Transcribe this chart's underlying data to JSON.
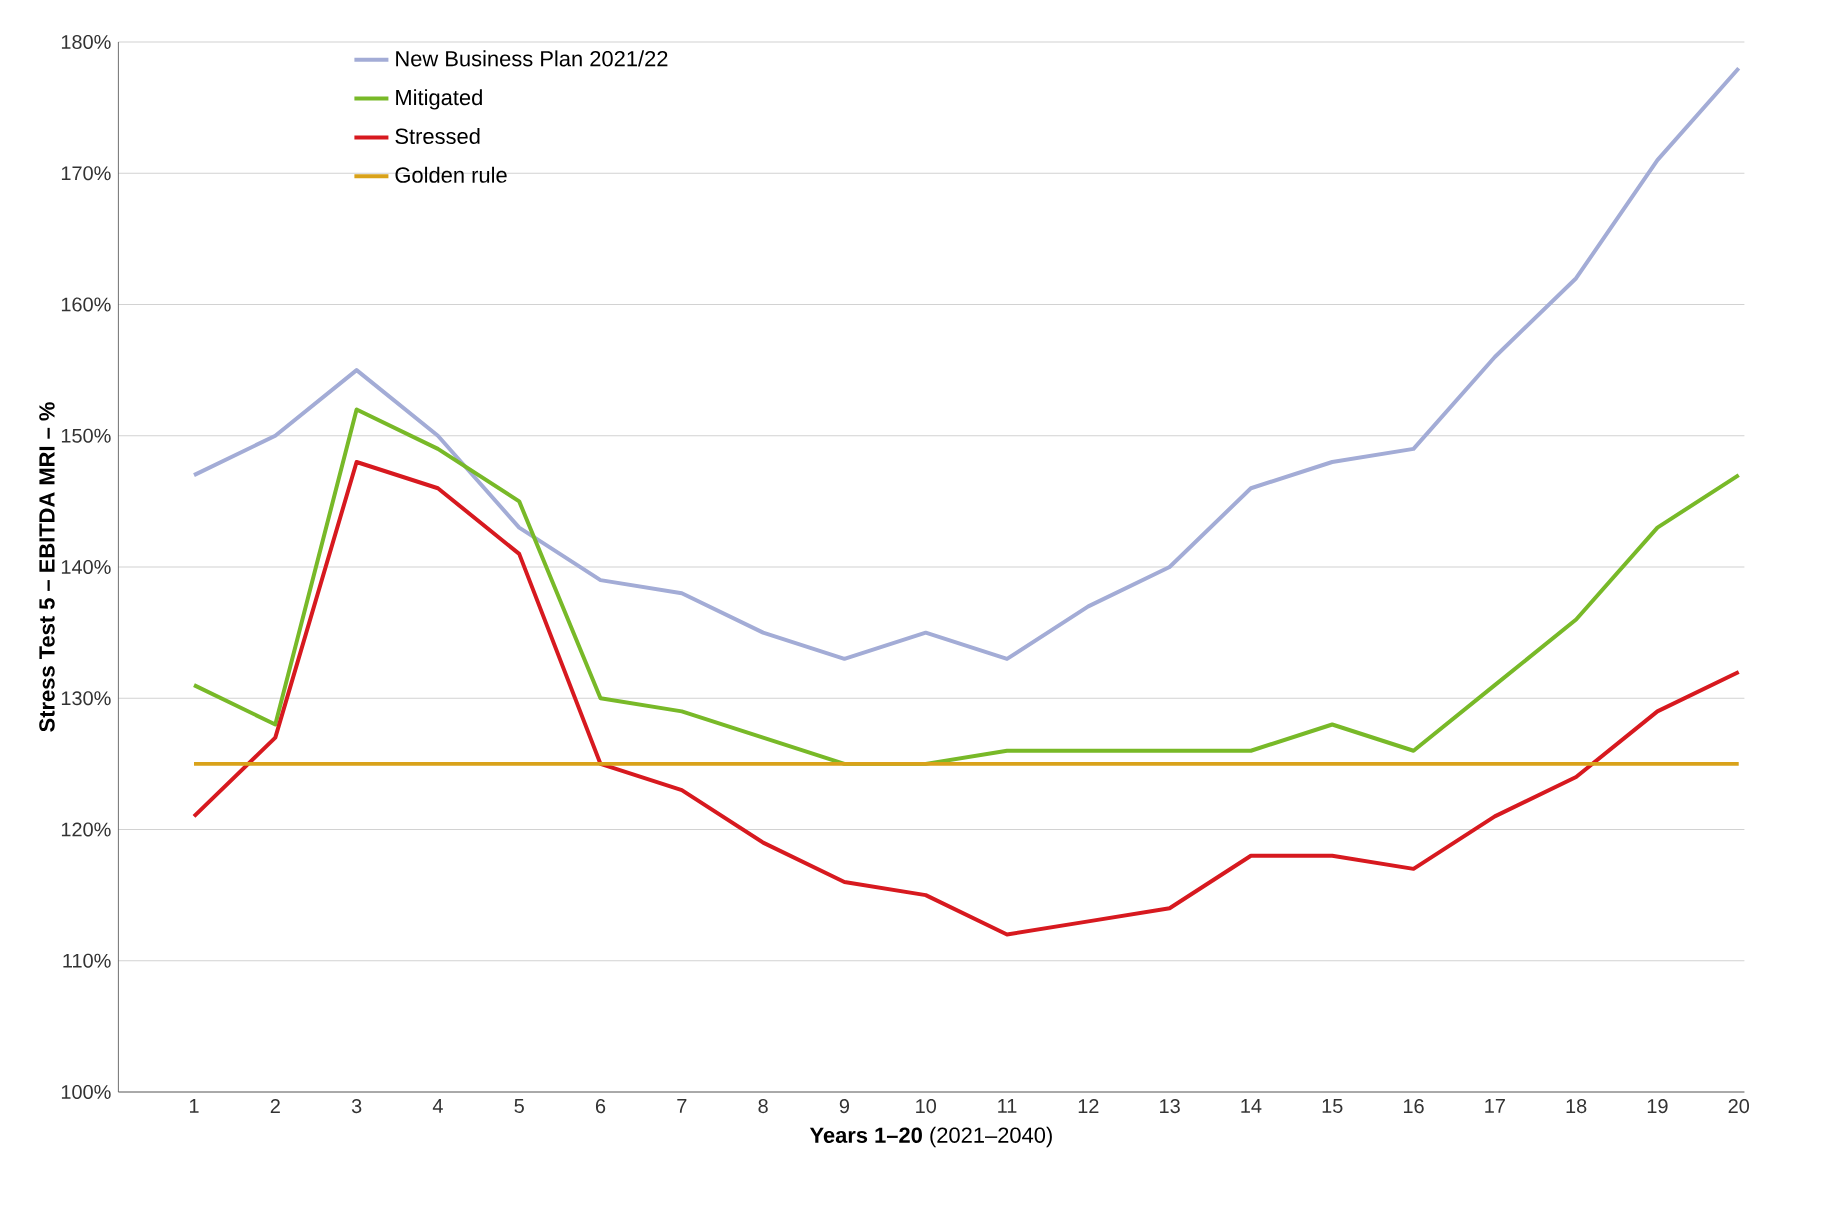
{
  "chart_data": {
    "type": "line",
    "xlabel": "**Years 1–20** (2021–2040)",
    "ylabel": "Stress Test 5 – EBITDA MRI – %",
    "categories": [
      "1",
      "2",
      "3",
      "4",
      "5",
      "6",
      "7",
      "8",
      "9",
      "10",
      "11",
      "12",
      "13",
      "14",
      "15",
      "16",
      "17",
      "18",
      "19",
      "20"
    ],
    "series": [
      {
        "name": "New Business Plan 2021/22",
        "color": "#a3acd6",
        "values": [
          147,
          150,
          155,
          150,
          143,
          139,
          138,
          135,
          133,
          135,
          133,
          137,
          140,
          146,
          148,
          149,
          156,
          162,
          171,
          178
        ]
      },
      {
        "name": "Mitigated",
        "color": "#78b928",
        "values": [
          131,
          128,
          152,
          149,
          145,
          130,
          129,
          127,
          125,
          125,
          126,
          126,
          126,
          126,
          128,
          126,
          131,
          136,
          143,
          147
        ]
      },
      {
        "name": "Stressed",
        "color": "#d7191f",
        "values": [
          121,
          127,
          148,
          146,
          141,
          125,
          123,
          119,
          116,
          115,
          112,
          113,
          114,
          118,
          118,
          117,
          121,
          124,
          129,
          132
        ]
      },
      {
        "name": "Golden rule",
        "color": "#d9a21a",
        "values": [
          125,
          125,
          125,
          125,
          125,
          125,
          125,
          125,
          125,
          125,
          125,
          125,
          125,
          125,
          125,
          125,
          125,
          125,
          125,
          125
        ]
      }
    ],
    "ylim": [
      100,
      180
    ],
    "yticks": [
      {
        "value": 100,
        "label": "100%"
      },
      {
        "value": 110,
        "label": "110%"
      },
      {
        "value": 120,
        "label": "120%"
      },
      {
        "value": 130,
        "label": "130%"
      },
      {
        "value": 140,
        "label": "140%"
      },
      {
        "value": 150,
        "label": "150%"
      },
      {
        "value": 160,
        "label": "160%"
      },
      {
        "value": 170,
        "label": "170%"
      },
      {
        "value": 180,
        "label": "180%"
      }
    ],
    "grid": "y",
    "legend": "top left",
    "marker": "none",
    "line_style": "solid"
  }
}
